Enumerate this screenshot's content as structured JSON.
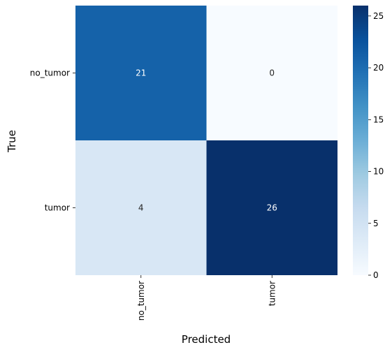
{
  "chart_data": {
    "type": "heatmap",
    "title": "",
    "xlabel": "Predicted",
    "ylabel": "True",
    "x_categories": [
      "no_tumor",
      "tumor"
    ],
    "y_categories": [
      "no_tumor",
      "tumor"
    ],
    "values": [
      [
        21,
        0
      ],
      [
        4,
        26
      ]
    ],
    "colormap": "Blues",
    "color_range": [
      0,
      26
    ],
    "annotate": true,
    "grid": false,
    "colorbar": {
      "position": "right",
      "ticks": [
        0,
        5,
        10,
        15,
        20,
        25
      ]
    }
  }
}
